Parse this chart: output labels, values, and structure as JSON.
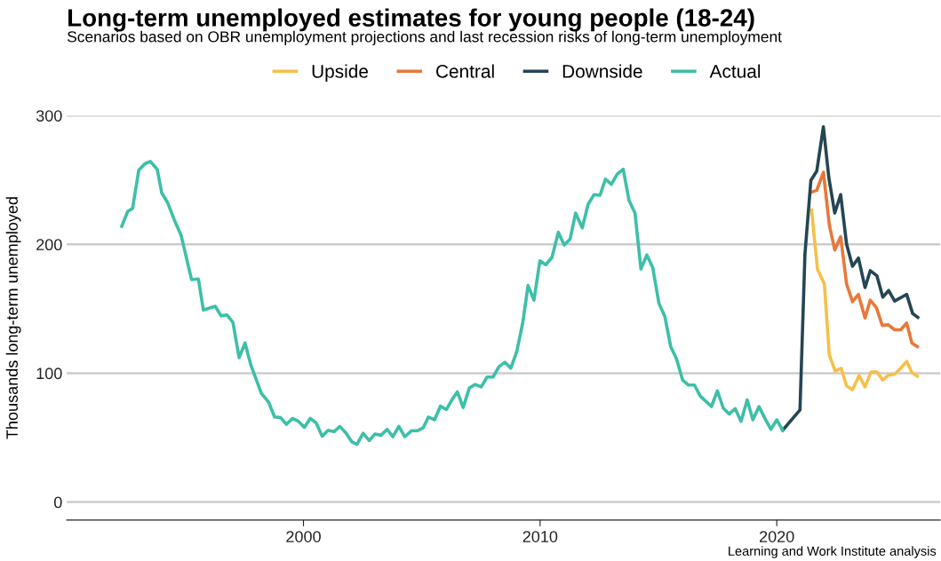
{
  "chart_data": {
    "type": "line",
    "title": "Long-term unemployed estimates for young people (18-24)",
    "subtitle": "Scenarios based on OBR unemployment projections and last recession risks of long-term unemployment",
    "ylabel": "Thousands long-term unemployed",
    "annotations": [
      "Learning and Work Institute analysis"
    ],
    "series": [
      {
        "name": "Upside",
        "color": "#f5c04a",
        "x": [
          2021.47,
          2021.72,
          2022.01,
          2022.22,
          2022.47,
          2022.72,
          2022.95,
          2023.2,
          2023.48,
          2023.73,
          2023.98,
          2024.23,
          2024.48,
          2024.73,
          2024.98,
          2025.24,
          2025.49,
          2025.71,
          2025.94
        ],
        "values": [
          226.6,
          180.8,
          169.3,
          114.2,
          101.6,
          103.9,
          90.1,
          87.2,
          98.2,
          89.4,
          100.9,
          100.9,
          94.7,
          98.6,
          99.3,
          103.9,
          109.2,
          100.5,
          97.7
        ]
      },
      {
        "name": "Central",
        "color": "#e8783a",
        "x": [
          2021.44,
          2021.69,
          2021.97,
          2022.22,
          2022.45,
          2022.7,
          2022.95,
          2023.2,
          2023.45,
          2023.73,
          2023.95,
          2024.21,
          2024.46,
          2024.71,
          2024.98,
          2025.24,
          2025.49,
          2025.71,
          2025.94
        ],
        "values": [
          240.4,
          242,
          256,
          215.2,
          195.6,
          206,
          169.3,
          155.5,
          161.2,
          142.9,
          156.7,
          150.9,
          137.1,
          137.6,
          133.7,
          133.7,
          139,
          123.4,
          120.6
        ]
      },
      {
        "name": "Downside",
        "color": "#244654",
        "x": [
          2020.25,
          2020.98,
          2021.19,
          2021.44,
          2021.69,
          2021.97,
          2022.2,
          2022.45,
          2022.7,
          2022.95,
          2023.2,
          2023.45,
          2023.73,
          2023.95,
          2024.23,
          2024.48,
          2024.73,
          2024.98,
          2025.49,
          2025.74,
          2025.96
        ],
        "values": [
          55.7,
          71.4,
          192.2,
          249.6,
          256.9,
          291.3,
          251.8,
          224.3,
          238.6,
          200.2,
          183,
          189.4,
          166.5,
          179.6,
          175.7,
          159,
          164.2,
          156,
          161.2,
          146.4,
          143.3
        ]
      },
      {
        "name": "Actual",
        "color": "#3dbfa8",
        "x": [
          1992.32,
          1992.57,
          1992.78,
          1993.04,
          1993.3,
          1993.53,
          1993.82,
          1994.01,
          1994.26,
          1994.58,
          1994.83,
          1995.27,
          1995.56,
          1995.77,
          1996.27,
          1996.52,
          1996.77,
          1997.02,
          1997.28,
          1997.53,
          1997.78,
          1998.22,
          1998.53,
          1998.78,
          1999.03,
          1999.28,
          1999.54,
          1999.79,
          2000.04,
          2000.29,
          2000.54,
          2000.79,
          2001.04,
          2001.29,
          2001.54,
          2001.8,
          2002.05,
          2002.26,
          2002.52,
          2002.78,
          2003.02,
          2003.28,
          2003.53,
          2003.78,
          2004.03,
          2004.28,
          2004.56,
          2004.81,
          2005.06,
          2005.28,
          2005.54,
          2005.79,
          2006.04,
          2006.29,
          2006.5,
          2006.75,
          2007.01,
          2007.26,
          2007.51,
          2007.76,
          2008.01,
          2008.26,
          2008.51,
          2008.76,
          2009.01,
          2009.27,
          2009.49,
          2009.74,
          2009.99,
          2010.24,
          2010.5,
          2010.77,
          2011.02,
          2011.27,
          2011.5,
          2011.78,
          2012.03,
          2012.28,
          2012.53,
          2012.76,
          2013.01,
          2013.26,
          2013.51,
          2013.76,
          2014.01,
          2014.26,
          2014.51,
          2014.76,
          2015.02,
          2015.27,
          2015.52,
          2015.77,
          2016.02,
          2016.27,
          2016.52,
          2016.77,
          2017.02,
          2017.24,
          2017.49,
          2017.74,
          2017.99,
          2018.24,
          2018.49,
          2018.75,
          2018.99,
          2019.25,
          2019.5,
          2019.75,
          2020.0,
          2020.25
        ],
        "values": [
          214,
          225.5,
          228,
          257.6,
          262.6,
          264.4,
          258.3,
          240,
          232.4,
          217.4,
          207,
          172.7,
          173.2,
          149.1,
          152,
          144.5,
          145.2,
          139.5,
          112,
          123.4,
          106.2,
          84.4,
          77.5,
          66,
          65.6,
          60.3,
          64.9,
          62.6,
          58,
          64.9,
          61.4,
          51.1,
          55.7,
          54.6,
          58.7,
          53.4,
          46.6,
          44.7,
          53.4,
          47.7,
          52.8,
          51.8,
          56.4,
          50.7,
          58.7,
          50.7,
          55.3,
          55.3,
          57.6,
          66,
          63.8,
          74.5,
          71.8,
          79.8,
          85.5,
          73.4,
          88.5,
          91.3,
          89.4,
          97,
          97,
          105,
          108.5,
          103.9,
          116.5,
          139.5,
          168.1,
          156.7,
          187.2,
          184.2,
          189.9,
          209.4,
          199.5,
          204.2,
          224.3,
          212.8,
          231.2,
          238.6,
          238.1,
          250.7,
          246.6,
          254.6,
          258.3,
          234,
          224.3,
          180.8,
          191.8,
          181.9,
          154.3,
          144,
          120.6,
          110.8,
          94.7,
          90.8,
          90.8,
          82.1,
          78,
          74.1,
          86.2,
          72.9,
          68.3,
          72.5,
          62.6,
          79.3,
          63.8,
          74.1,
          64.9,
          56.4,
          63.8,
          55.7
        ]
      }
    ],
    "xlim": [
      1990,
      2026.9
    ],
    "xticks": [
      2000,
      2010,
      2020
    ],
    "ylim": [
      -14,
      300
    ],
    "yticks": [
      0,
      100,
      200,
      300
    ],
    "grid": "y",
    "legend": "top",
    "marker": "none",
    "line_style": "solid"
  }
}
